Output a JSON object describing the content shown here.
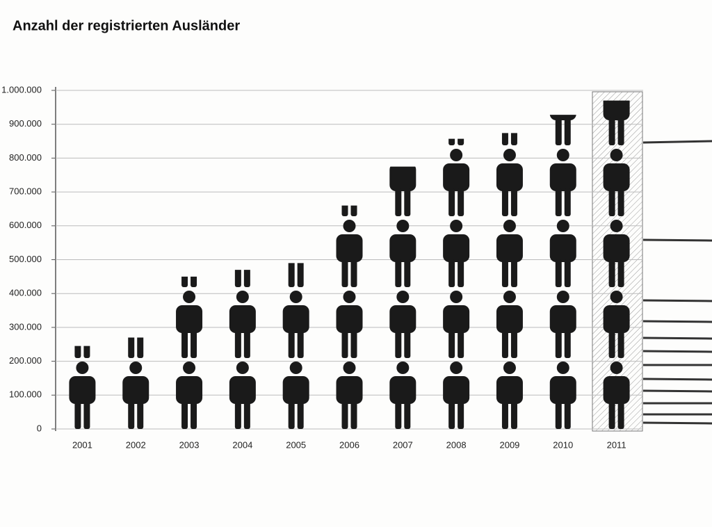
{
  "chart_data": {
    "type": "pictogram",
    "title": "Anzahl der registrierten Ausländer",
    "categories": [
      "2001",
      "2002",
      "2003",
      "2004",
      "2005",
      "2006",
      "2007",
      "2008",
      "2009",
      "2010",
      "2011"
    ],
    "values": [
      245000,
      270000,
      450000,
      470000,
      490000,
      660000,
      775000,
      857000,
      874000,
      928000,
      970000
    ],
    "color": "#1a1a1a",
    "ylim": [
      0,
      1000000
    ],
    "yticks": [
      0,
      {
        "value": 100000,
        "label": "100.000"
      },
      {
        "value": 200000,
        "label": "200.000"
      },
      {
        "value": 300000,
        "label": "300.000"
      },
      {
        "value": 400000,
        "label": "400.000"
      },
      {
        "value": 500000,
        "label": "500.000"
      },
      {
        "value": 600000,
        "label": "600.000"
      },
      {
        "value": 700000,
        "label": "700.000"
      },
      {
        "value": 800000,
        "label": "800.000"
      },
      {
        "value": 900000,
        "label": "900.000"
      },
      {
        "value": 1000000,
        "label": "1.000.000"
      }
    ],
    "grid": true
  }
}
